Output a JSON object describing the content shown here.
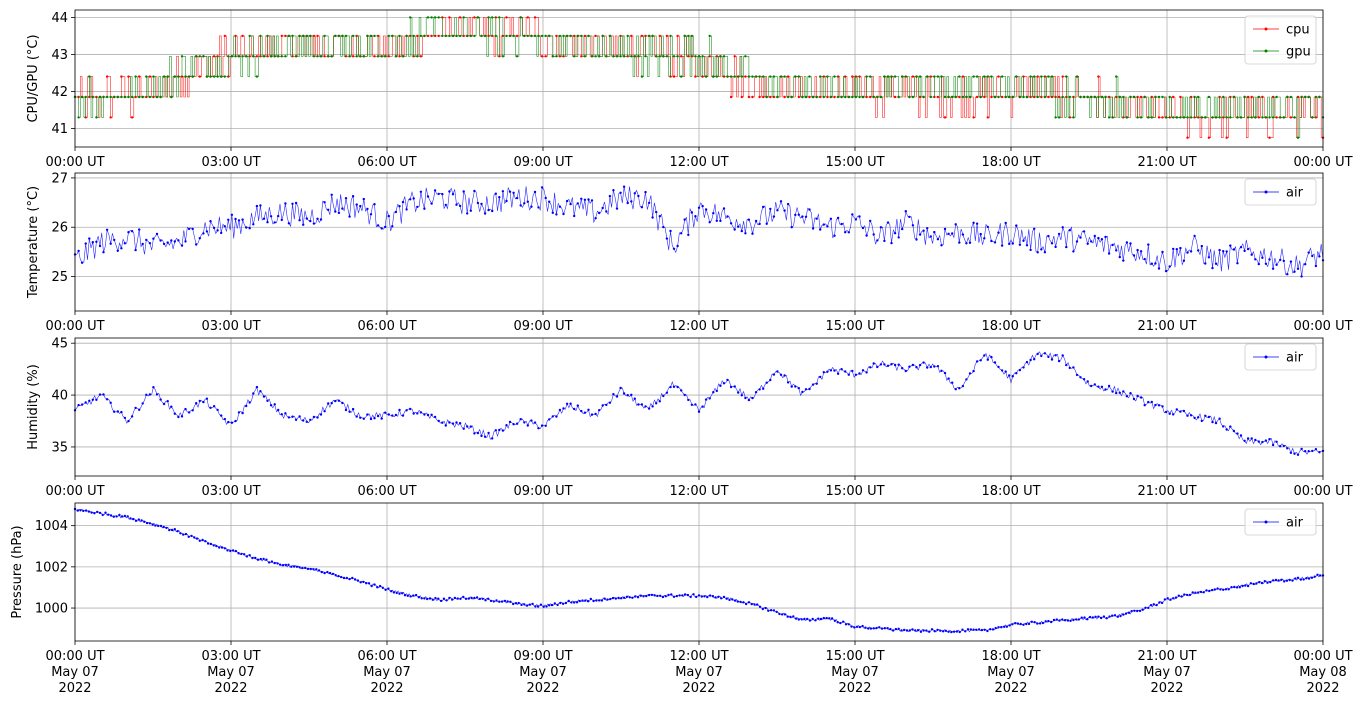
{
  "chart_data": [
    {
      "type": "line",
      "ylabel": "CPU/GPU (°C)",
      "ylim": [
        40.5,
        44.2
      ],
      "yticks": [
        41,
        42,
        43,
        44
      ],
      "xlim": [
        0,
        24
      ],
      "xticks": [
        0,
        3,
        6,
        9,
        12,
        15,
        18,
        21,
        24
      ],
      "xtick_labels": [
        "00:00 UT",
        "03:00 UT",
        "06:00 UT",
        "09:00 UT",
        "12:00 UT",
        "15:00 UT",
        "18:00 UT",
        "21:00 UT",
        "00:00 UT"
      ],
      "grid": true,
      "legend": "top-right",
      "series": [
        {
          "name": "cpu",
          "color": "#ff0000",
          "step": 0.5,
          "x": [
            0.0,
            0.5,
            1.0,
            1.5,
            2.0,
            2.5,
            3.0,
            3.5,
            4.0,
            4.5,
            5.0,
            5.5,
            6.0,
            6.5,
            7.0,
            7.5,
            8.0,
            8.5,
            9.0,
            9.5,
            10.0,
            10.5,
            11.0,
            11.5,
            12.0,
            12.5,
            13.0,
            13.5,
            14.0,
            14.5,
            15.0,
            15.5,
            16.0,
            16.5,
            17.0,
            17.5,
            18.0,
            18.5,
            19.0,
            19.5,
            20.0,
            20.5,
            21.0,
            21.5,
            22.0,
            22.5,
            23.0,
            23.5,
            24.0
          ],
          "values": [
            41.8,
            41.8,
            41.8,
            41.8,
            42.3,
            42.6,
            42.9,
            43.0,
            43.1,
            43.2,
            43.2,
            43.1,
            43.2,
            43.3,
            43.6,
            43.6,
            43.5,
            43.6,
            43.4,
            43.2,
            43.2,
            43.1,
            43.0,
            42.9,
            42.7,
            42.5,
            42.2,
            42.1,
            41.9,
            42.0,
            41.9,
            41.9,
            41.9,
            41.8,
            41.8,
            41.9,
            41.8,
            41.9,
            41.8,
            41.8,
            41.6,
            41.4,
            41.3,
            41.3,
            41.3,
            41.3,
            41.3,
            41.3,
            41.3
          ]
        },
        {
          "name": "gpu",
          "color": "#008000",
          "step": 0.5,
          "x": [
            0.0,
            0.5,
            1.0,
            1.5,
            2.0,
            2.5,
            3.0,
            3.5,
            4.0,
            4.5,
            5.0,
            5.5,
            6.0,
            6.5,
            7.0,
            7.5,
            8.0,
            8.5,
            9.0,
            9.5,
            10.0,
            10.5,
            11.0,
            11.5,
            12.0,
            12.5,
            13.0,
            13.5,
            14.0,
            14.5,
            15.0,
            15.5,
            16.0,
            16.5,
            17.0,
            17.5,
            18.0,
            18.5,
            19.0,
            19.5,
            20.0,
            20.5,
            21.0,
            21.5,
            22.0,
            22.5,
            23.0,
            23.5,
            24.0
          ],
          "values": [
            41.8,
            41.8,
            41.9,
            42.1,
            42.4,
            42.7,
            42.9,
            43.0,
            43.2,
            43.2,
            43.2,
            43.1,
            43.3,
            43.4,
            43.6,
            43.5,
            43.5,
            43.5,
            43.3,
            43.2,
            43.1,
            43.0,
            42.9,
            42.9,
            42.9,
            42.6,
            42.3,
            42.2,
            42.1,
            42.1,
            42.0,
            42.0,
            42.2,
            42.1,
            42.0,
            42.1,
            42.0,
            42.1,
            41.9,
            41.9,
            41.7,
            41.5,
            41.4,
            41.5,
            41.5,
            41.6,
            41.5,
            41.4,
            41.5
          ]
        }
      ]
    },
    {
      "type": "line",
      "ylabel": "Temperature (°C)",
      "ylim": [
        24.3,
        27.1
      ],
      "yticks": [
        25,
        26,
        27
      ],
      "xlim": [
        0,
        24
      ],
      "xticks": [
        0,
        3,
        6,
        9,
        12,
        15,
        18,
        21,
        24
      ],
      "xtick_labels": [
        "00:00 UT",
        "03:00 UT",
        "06:00 UT",
        "09:00 UT",
        "12:00 UT",
        "15:00 UT",
        "18:00 UT",
        "21:00 UT",
        "00:00 UT"
      ],
      "grid": true,
      "legend": "top-right",
      "series": [
        {
          "name": "air",
          "color": "#0000ff",
          "x": [
            0.0,
            0.5,
            1.0,
            1.5,
            2.0,
            2.5,
            3.0,
            3.5,
            4.0,
            4.5,
            5.0,
            5.5,
            6.0,
            6.5,
            7.0,
            7.5,
            8.0,
            8.5,
            9.0,
            9.5,
            10.0,
            10.5,
            11.0,
            11.5,
            12.0,
            12.5,
            13.0,
            13.5,
            14.0,
            14.5,
            15.0,
            15.5,
            16.0,
            16.5,
            17.0,
            17.5,
            18.0,
            18.5,
            19.0,
            19.5,
            20.0,
            20.5,
            21.0,
            21.5,
            22.0,
            22.5,
            23.0,
            23.5,
            24.0
          ],
          "values": [
            25.3,
            25.7,
            25.8,
            25.6,
            25.7,
            26.0,
            26.0,
            26.2,
            26.3,
            26.2,
            26.5,
            26.4,
            26.1,
            26.5,
            26.6,
            26.5,
            26.5,
            26.6,
            26.6,
            26.4,
            26.3,
            26.6,
            26.6,
            25.6,
            26.4,
            26.2,
            26.1,
            26.3,
            26.2,
            26.0,
            26.1,
            25.8,
            26.1,
            25.8,
            25.9,
            25.8,
            25.9,
            25.7,
            25.8,
            25.7,
            25.6,
            25.5,
            25.3,
            25.6,
            25.3,
            25.5,
            25.4,
            25.2,
            25.5
          ]
        }
      ]
    },
    {
      "type": "line",
      "ylabel": "Humidity (%)",
      "ylim": [
        32.2,
        45.5
      ],
      "yticks": [
        35,
        40,
        45
      ],
      "xlim": [
        0,
        24
      ],
      "xticks": [
        0,
        3,
        6,
        9,
        12,
        15,
        18,
        21,
        24
      ],
      "xtick_labels": [
        "00:00 UT",
        "03:00 UT",
        "06:00 UT",
        "09:00 UT",
        "12:00 UT",
        "15:00 UT",
        "18:00 UT",
        "21:00 UT",
        "00:00 UT"
      ],
      "grid": true,
      "legend": "top-right",
      "series": [
        {
          "name": "air",
          "color": "#0000ff",
          "x": [
            0.0,
            0.5,
            1.0,
            1.5,
            2.0,
            2.5,
            3.0,
            3.5,
            4.0,
            4.5,
            5.0,
            5.5,
            6.0,
            6.5,
            7.0,
            7.5,
            8.0,
            8.5,
            9.0,
            9.5,
            10.0,
            10.5,
            11.0,
            11.5,
            12.0,
            12.5,
            13.0,
            13.5,
            14.0,
            14.5,
            15.0,
            15.5,
            16.0,
            16.5,
            17.0,
            17.5,
            18.0,
            18.5,
            19.0,
            19.5,
            20.0,
            20.5,
            21.0,
            21.5,
            22.0,
            22.5,
            23.0,
            23.5,
            24.0
          ],
          "values": [
            38.5,
            40.0,
            37.5,
            40.5,
            38.0,
            39.5,
            37.0,
            40.5,
            38.0,
            37.5,
            39.5,
            38.0,
            38.0,
            38.5,
            37.5,
            37.0,
            36.0,
            37.5,
            37.0,
            39.0,
            38.0,
            40.5,
            38.5,
            41.0,
            38.5,
            41.5,
            39.5,
            42.5,
            40.0,
            42.5,
            42.0,
            43.0,
            42.5,
            43.0,
            40.5,
            44.0,
            41.5,
            44.0,
            43.5,
            41.0,
            40.5,
            39.5,
            38.5,
            38.0,
            37.5,
            35.5,
            35.5,
            34.5,
            34.5
          ]
        }
      ]
    },
    {
      "type": "line",
      "ylabel": "Pressure (hPa)",
      "ylim": [
        998.4,
        1005.1
      ],
      "yticks": [
        1000,
        1002,
        1004
      ],
      "xlim": [
        0,
        24
      ],
      "xticks": [
        0,
        3,
        6,
        9,
        12,
        15,
        18,
        21,
        24
      ],
      "xtick_labels": [
        "00:00 UT\nMay 07\n2022",
        "03:00 UT\nMay 07\n2022",
        "06:00 UT\nMay 07\n2022",
        "09:00 UT\nMay 07\n2022",
        "12:00 UT\nMay 07\n2022",
        "15:00 UT\nMay 07\n2022",
        "18:00 UT\nMay 07\n2022",
        "21:00 UT\nMay 07\n2022",
        "00:00 UT\nMay 08\n2022"
      ],
      "grid": true,
      "legend": "top-right",
      "series": [
        {
          "name": "air",
          "color": "#0000ff",
          "x": [
            0.0,
            0.5,
            1.0,
            1.5,
            2.0,
            2.5,
            3.0,
            3.5,
            4.0,
            4.5,
            5.0,
            5.5,
            6.0,
            6.5,
            7.0,
            7.5,
            8.0,
            8.5,
            9.0,
            9.5,
            10.0,
            10.5,
            11.0,
            11.5,
            12.0,
            12.5,
            13.0,
            13.5,
            14.0,
            14.5,
            15.0,
            15.5,
            16.0,
            16.5,
            17.0,
            17.5,
            18.0,
            18.5,
            19.0,
            19.5,
            20.0,
            20.5,
            21.0,
            21.5,
            22.0,
            22.5,
            23.0,
            23.5,
            24.0
          ],
          "values": [
            1004.8,
            1004.6,
            1004.4,
            1004.1,
            1003.7,
            1003.2,
            1002.8,
            1002.4,
            1002.1,
            1001.9,
            1001.6,
            1001.3,
            1000.9,
            1000.6,
            1000.4,
            1000.5,
            1000.4,
            1000.2,
            1000.1,
            1000.3,
            1000.4,
            1000.5,
            1000.6,
            1000.6,
            1000.6,
            1000.5,
            1000.2,
            999.8,
            999.4,
            999.5,
            999.1,
            999.0,
            998.9,
            998.9,
            998.9,
            998.9,
            999.2,
            999.3,
            999.4,
            999.5,
            999.6,
            999.9,
            1000.4,
            1000.7,
            1000.9,
            1001.1,
            1001.3,
            1001.4,
            1001.6
          ]
        }
      ]
    }
  ]
}
